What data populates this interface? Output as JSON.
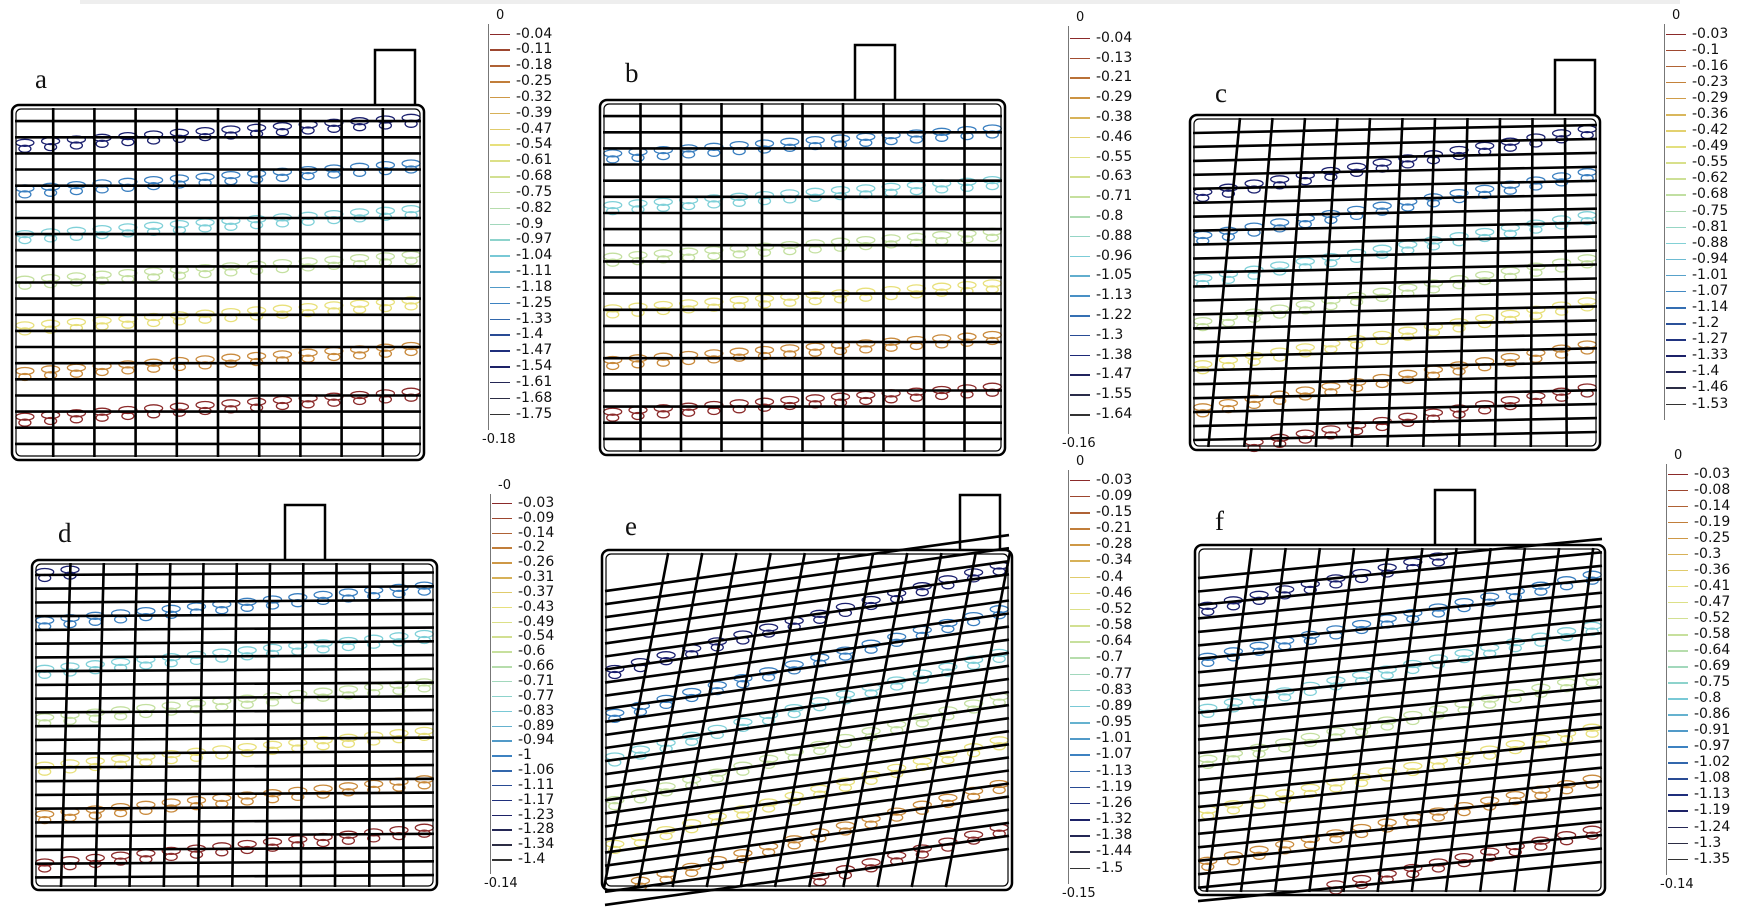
{
  "panels": [
    {
      "id": "a",
      "label": "a",
      "grid": "rect",
      "skew": 0
    },
    {
      "id": "b",
      "label": "b",
      "grid": "rect",
      "skew": 0
    },
    {
      "id": "c",
      "label": "c",
      "grid": "fan",
      "skew": 0.5
    },
    {
      "id": "d",
      "label": "d",
      "grid": "fan",
      "skew": 0.15
    },
    {
      "id": "e",
      "label": "e",
      "grid": "skewed",
      "skew": 1
    },
    {
      "id": "f",
      "label": "f",
      "grid": "skewed",
      "skew": 0.7
    }
  ],
  "legends": [
    {
      "id": "a",
      "top": "0",
      "bottom": "-0.18",
      "values": [
        "-0.04",
        "-0.11",
        "-0.18",
        "-0.25",
        "-0.32",
        "-0.39",
        "-0.47",
        "-0.54",
        "-0.61",
        "-0.68",
        "-0.75",
        "-0.82",
        "-0.9",
        "-0.97",
        "-1.04",
        "-1.11",
        "-1.18",
        "-1.25",
        "-1.33",
        "-1.4",
        "-1.47",
        "-1.54",
        "-1.61",
        "-1.68",
        "-1.75"
      ]
    },
    {
      "id": "b",
      "top": "0",
      "bottom": "-0.16",
      "values": [
        "-0.04",
        "-0.13",
        "-0.21",
        "-0.29",
        "-0.38",
        "-0.46",
        "-0.55",
        "-0.63",
        "-0.71",
        "-0.8",
        "-0.88",
        "-0.96",
        "-1.05",
        "-1.13",
        "-1.22",
        "-1.3",
        "-1.38",
        "-1.47",
        "-1.55",
        "-1.64"
      ]
    },
    {
      "id": "c",
      "top": "0",
      "bottom": "",
      "values": [
        "-0.03",
        "-0.1",
        "-0.16",
        "-0.23",
        "-0.29",
        "-0.36",
        "-0.42",
        "-0.49",
        "-0.55",
        "-0.62",
        "-0.68",
        "-0.75",
        "-0.81",
        "-0.88",
        "-0.94",
        "-1.01",
        "-1.07",
        "-1.14",
        "-1.2",
        "-1.27",
        "-1.33",
        "-1.4",
        "-1.46",
        "-1.53"
      ]
    },
    {
      "id": "d",
      "top": "-0",
      "bottom": "-0.14",
      "values": [
        "-0.03",
        "-0.09",
        "-0.14",
        "-0.2",
        "-0.26",
        "-0.31",
        "-0.37",
        "-0.43",
        "-0.49",
        "-0.54",
        "-0.6",
        "-0.66",
        "-0.71",
        "-0.77",
        "-0.83",
        "-0.89",
        "-0.94",
        "-1",
        "-1.06",
        "-1.11",
        "-1.17",
        "-1.23",
        "-1.28",
        "-1.34",
        "-1.4"
      ]
    },
    {
      "id": "e",
      "top": "0",
      "bottom": "-0.15",
      "values": [
        "-0.03",
        "-0.09",
        "-0.15",
        "-0.21",
        "-0.28",
        "-0.34",
        "-0.4",
        "-0.46",
        "-0.52",
        "-0.58",
        "-0.64",
        "-0.7",
        "-0.77",
        "-0.83",
        "-0.89",
        "-0.95",
        "-1.01",
        "-1.07",
        "-1.13",
        "-1.19",
        "-1.26",
        "-1.32",
        "-1.38",
        "-1.44",
        "-1.5"
      ]
    },
    {
      "id": "f",
      "top": "0",
      "bottom": "-0.14",
      "values": [
        "-0.03",
        "-0.08",
        "-0.14",
        "-0.19",
        "-0.25",
        "-0.3",
        "-0.36",
        "-0.41",
        "-0.47",
        "-0.52",
        "-0.58",
        "-0.64",
        "-0.69",
        "-0.75",
        "-0.8",
        "-0.86",
        "-0.91",
        "-0.97",
        "-1.02",
        "-1.08",
        "-1.13",
        "-1.19",
        "-1.24",
        "-1.3",
        "-1.35"
      ]
    }
  ],
  "colors": {
    "colormap": [
      "#8b2a2a",
      "#c98a3c",
      "#e8e07a",
      "#c4e0a0",
      "#7fd0d8",
      "#3a7fc0",
      "#1a1f6e",
      "#333333"
    ],
    "grid": "#000000"
  }
}
